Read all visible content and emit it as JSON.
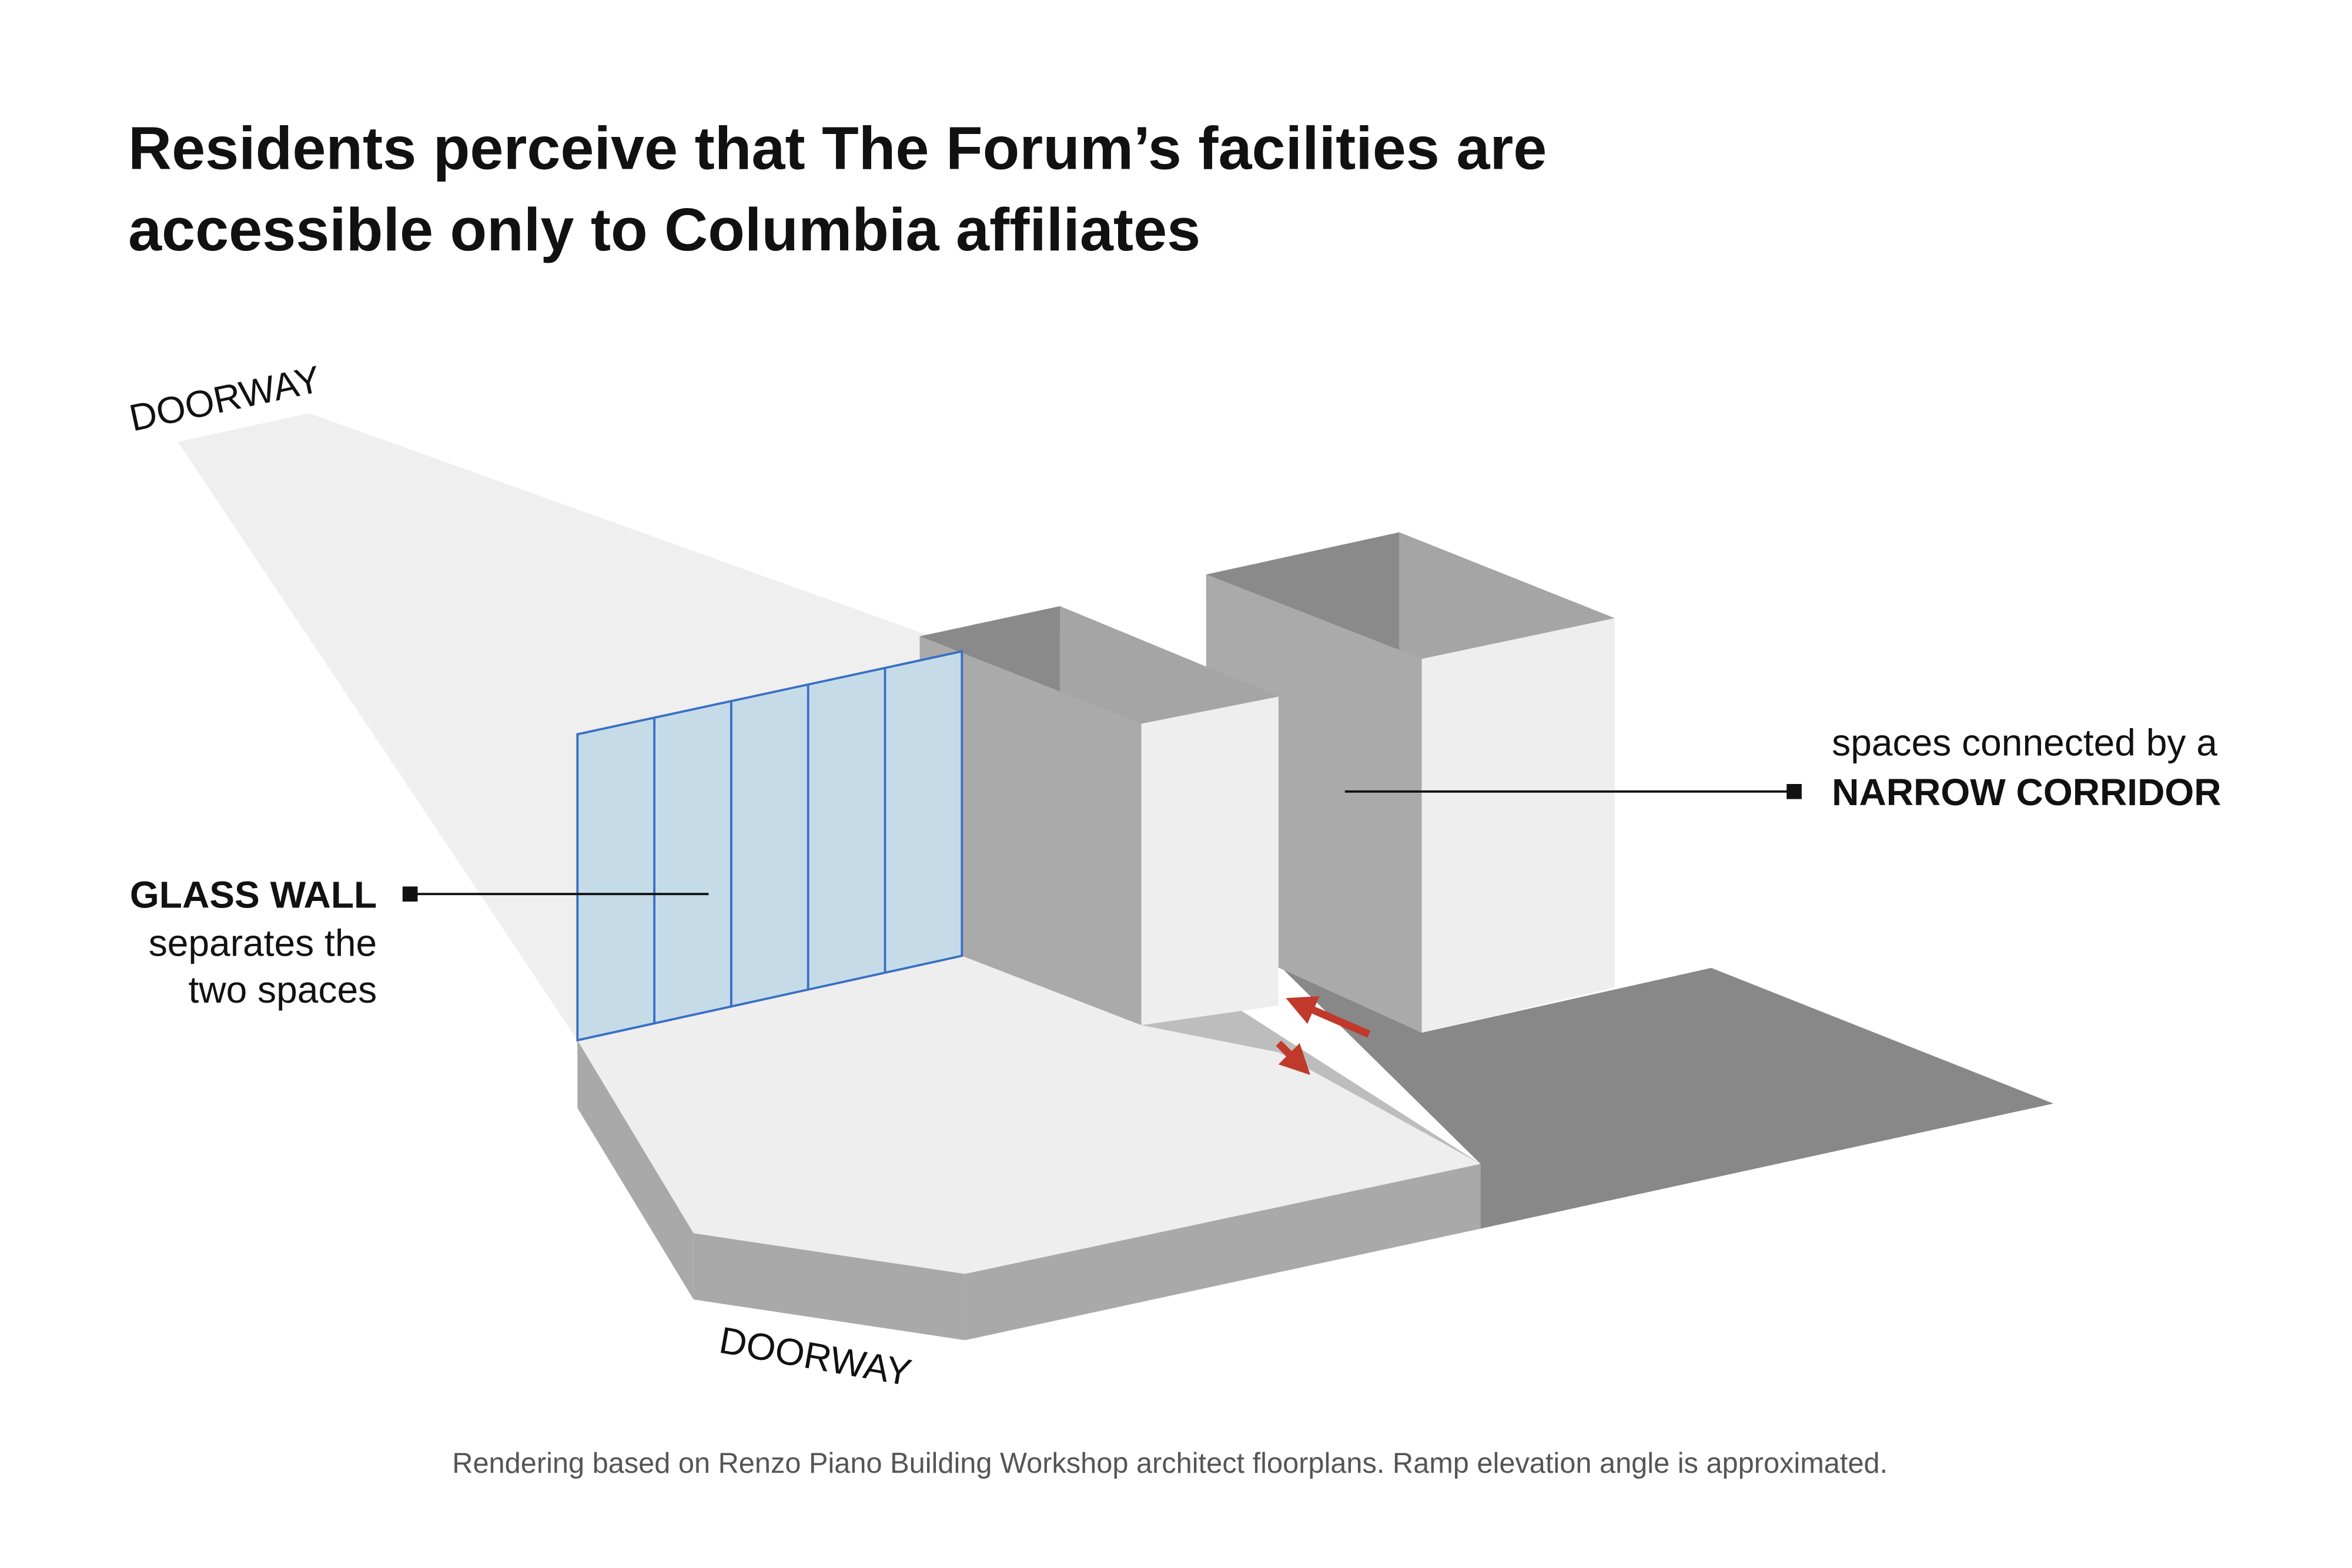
{
  "title": [
    "Residents perceive that The Forum’s facilities are",
    "accessible only to Columbia affiliates"
  ],
  "labels": {
    "doorway_top": "DOORWAY",
    "doorway_bottom": "DOORWAY",
    "glass_wall": {
      "bold": "GLASS WALL",
      "lines": [
        "separates the",
        "two spaces"
      ]
    },
    "corridor": {
      "lines": [
        "spaces connected by a"
      ],
      "bold": "NARROW CORRIDOR"
    }
  },
  "caption": "Rendering based on Renzo Piano Building Workshop architect floorplans. Ramp elevation angle is approximated."
}
